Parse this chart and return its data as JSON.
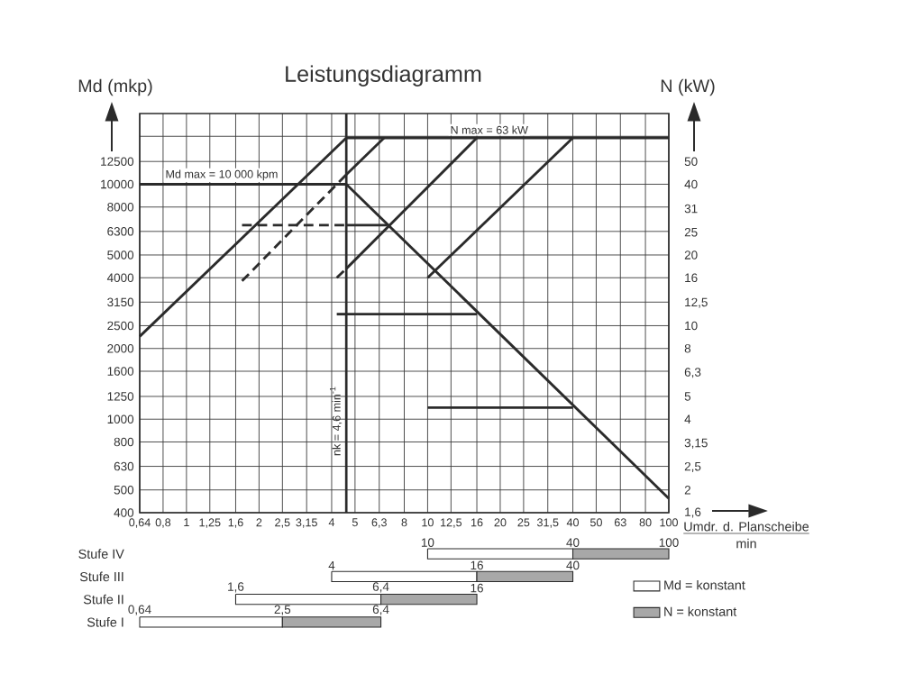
{
  "chart_data": [
    {
      "type": "line",
      "title": "Leistungsdiagramm",
      "xlabel": "Umdr. d. Planscheibe",
      "ylabel": "Md (mkp)",
      "xlim": [
        0.64,
        100
      ],
      "ylim": [
        400,
        20000
      ],
      "xticks": [
        {
          "value": 0.64,
          "label": "0,64"
        },
        {
          "value": 0.8,
          "label": "0,8"
        },
        1,
        {
          "value": 1.25,
          "label": "1,25"
        },
        {
          "value": 1.6,
          "label": "1,6"
        },
        2,
        {
          "value": 2.5,
          "label": "2,5"
        },
        {
          "value": 3.15,
          "label": "3,15"
        },
        4,
        5,
        {
          "value": 6.3,
          "label": "6,3"
        },
        8,
        10,
        {
          "value": 12.5,
          "label": "12,5"
        },
        16,
        20,
        25,
        {
          "value": 31.5,
          "label": "31,5"
        },
        40,
        50,
        63,
        80,
        100
      ],
      "yticks": [
        400,
        500,
        630,
        800,
        1000,
        1250,
        1600,
        2000,
        2500,
        3150,
        4000,
        5000,
        6300,
        8000,
        10000,
        12500,
        {
          "value": 16000,
          "label": null
        }
      ],
      "log": "xy",
      "grid": true,
      "series": [
        {
          "color": "#2b2b2b",
          "x": [
            0.64,
            4.6
          ],
          "values": [
            10000,
            10000
          ]
        },
        {
          "color": "#2b2b2b",
          "x": [
            4.6,
            100
          ],
          "values": [
            10000,
            460
          ]
        },
        {
          "color": "#2b2b2b",
          "line_style": "dashed",
          "x": [
            1.7,
            4.6
          ],
          "values": [
            6700,
            6700
          ]
        },
        {
          "color": "#2b2b2b",
          "x": [
            4.6,
            6.8
          ],
          "values": [
            6700,
            6700
          ]
        },
        {
          "color": "#2b2b2b",
          "line_style": "dashed",
          "x": [
            4.2,
            4.6
          ],
          "values": [
            2800,
            2800
          ]
        },
        {
          "color": "#2b2b2b",
          "x": [
            4.6,
            16
          ],
          "values": [
            2800,
            2800
          ]
        },
        {
          "color": "#2b2b2b",
          "x": [
            10,
            40
          ],
          "values": [
            1120,
            1120
          ]
        }
      ],
      "ref_lines": [
        {
          "axis": "x",
          "value": 4.6,
          "label": "nk = 4,6 min$^{-1}$",
          "color": "#2b2b2b"
        }
      ],
      "annotations": [
        {
          "text": "Md max = 10 000 kpm",
          "x": 1.4,
          "y": 10000
        },
        "min"
      ]
    },
    {
      "type": "line",
      "ylabel": "N (kW)",
      "xlim": [
        0.64,
        100
      ],
      "ylim": [
        1.6,
        80
      ],
      "yticks": [
        {
          "value": 1.6,
          "label": "1,6"
        },
        2,
        {
          "value": 2.5,
          "label": "2,5"
        },
        {
          "value": 3.15,
          "label": "3,15"
        },
        4,
        5,
        {
          "value": 6.3,
          "label": "6,3"
        },
        8,
        10,
        {
          "value": 12.5,
          "label": "12,5"
        },
        16,
        20,
        25,
        {
          "value": 31.5,
          "label": "31"
        },
        40,
        50
      ],
      "log": "xy",
      "tick_labels": "y",
      "series": [
        {
          "color": "#2b2b2b",
          "x": [
            4.6,
            100
          ],
          "values": [
            63,
            63
          ]
        },
        {
          "color": "#2b2b2b",
          "x": [
            0.64,
            4.6
          ],
          "values": [
            9,
            63
          ]
        },
        {
          "color": "#2b2b2b",
          "line_style": "dashed",
          "x": [
            1.7,
            4.6
          ],
          "values": [
            15.5,
            44
          ]
        },
        {
          "color": "#2b2b2b",
          "x": [
            4.6,
            6.6
          ],
          "values": [
            44,
            63
          ]
        },
        {
          "color": "#2b2b2b",
          "line_style": "dashed",
          "x": [
            4.2,
            4.6
          ],
          "values": [
            16,
            17.5
          ]
        },
        {
          "color": "#2b2b2b",
          "x": [
            4.6,
            16
          ],
          "values": [
            17.5,
            63
          ]
        },
        {
          "color": "#2b2b2b",
          "x": [
            10,
            40
          ],
          "values": [
            16,
            63
          ]
        }
      ],
      "annotations": [
        {
          "text": "N max = 63 kW",
          "x": 18,
          "y": 63
        }
      ]
    },
    {
      "type": "bar",
      "orientation": "horizontal",
      "categories": [
        "Stufe IV",
        "Stufe III",
        "Stufe II",
        "Stufe I"
      ],
      "series": [
        {
          "name": "Md = konstant",
          "color": "#ffffff",
          "base": [
            10,
            4,
            1.6,
            0.64
          ],
          "values": [
            30,
            12,
            4.8,
            1.86
          ]
        },
        {
          "name": "N = konstant",
          "color": "#a8a8a8",
          "base": [
            40,
            16,
            6.4,
            2.5
          ],
          "values": [
            60,
            24,
            9.6,
            3.9
          ]
        }
      ],
      "xlim": [
        0.64,
        100
      ],
      "log": "x",
      "tick_labels": "y",
      "legend": "right",
      "annotations": [
        {
          "text": "10",
          "x": 10,
          "y": "Stufe IV"
        },
        {
          "text": "40",
          "x": 40,
          "y": "Stufe IV"
        },
        {
          "text": "100",
          "x": 100,
          "y": "Stufe IV"
        },
        {
          "text": "4",
          "x": 4,
          "y": "Stufe III"
        },
        {
          "text": "16",
          "x": 16,
          "y": "Stufe III"
        },
        {
          "text": "40",
          "x": 40,
          "y": "Stufe III"
        },
        {
          "text": "1,6",
          "x": 1.6,
          "y": "Stufe II"
        },
        {
          "text": "6,4",
          "x": 6.4,
          "y": "Stufe II"
        },
        {
          "text": "16",
          "x": 16,
          "y": "Stufe II"
        },
        {
          "text": "0,64",
          "x": 0.64,
          "y": "Stufe I"
        },
        {
          "text": "2,5",
          "x": 2.5,
          "y": "Stufe I"
        },
        {
          "text": "6,4",
          "x": 6.4,
          "y": "Stufe I"
        }
      ]
    }
  ]
}
